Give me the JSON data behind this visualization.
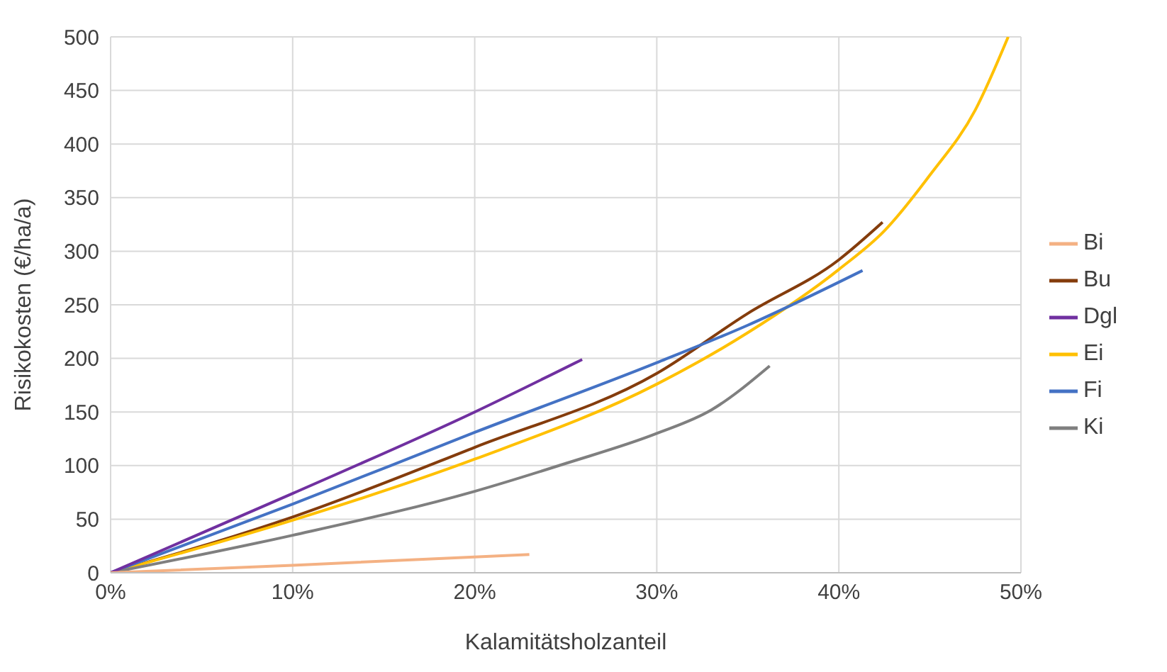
{
  "chart_data": {
    "type": "line",
    "xlabel": "Kalamitätsholzanteil",
    "ylabel": "Risikokosten (€/ha/a)",
    "xlim": [
      0,
      50
    ],
    "xticks": [
      {
        "value": 0,
        "label": "0%"
      },
      {
        "value": 10,
        "label": "10%"
      },
      {
        "value": 20,
        "label": "20%"
      },
      {
        "value": 30,
        "label": "30%"
      },
      {
        "value": 40,
        "label": "40%"
      },
      {
        "value": 50,
        "label": "50%"
      }
    ],
    "ylim": [
      0,
      500
    ],
    "yticks": [
      0,
      50,
      100,
      150,
      200,
      250,
      300,
      350,
      400,
      450,
      500
    ],
    "grid": true,
    "legend": "right",
    "series": [
      {
        "name": "Bu",
        "color": "#843c0c",
        "x": [
          0,
          10,
          20,
          30,
          35,
          40,
          42.4
        ],
        "values": [
          0,
          52,
          117,
          186,
          242,
          292,
          327
        ]
      },
      {
        "name": "Ei",
        "color": "#ffc000",
        "x": [
          0,
          10,
          20,
          30,
          35,
          40,
          42.5,
          45,
          47.5,
          49.3
        ],
        "values": [
          0,
          49,
          106,
          176,
          224,
          283,
          319,
          371,
          432,
          500
        ]
      },
      {
        "name": "Fi",
        "color": "#4472c4",
        "x": [
          0,
          10,
          20,
          30,
          35,
          41.3
        ],
        "values": [
          0,
          64,
          131,
          196,
          231,
          282
        ]
      },
      {
        "name": "Ki",
        "color": "#7f7f7f",
        "x": [
          0,
          10,
          20,
          25,
          30,
          33,
          36.2
        ],
        "values": [
          0,
          35,
          76,
          102,
          130,
          152,
          193
        ]
      },
      {
        "name": "Dgl",
        "color": "#7030a0",
        "x": [
          0,
          10,
          20,
          25.9
        ],
        "values": [
          0,
          74,
          150,
          199
        ]
      },
      {
        "name": "Bi",
        "color": "#f4b183",
        "x": [
          0,
          10,
          23
        ],
        "values": [
          0,
          7,
          17
        ]
      }
    ]
  }
}
